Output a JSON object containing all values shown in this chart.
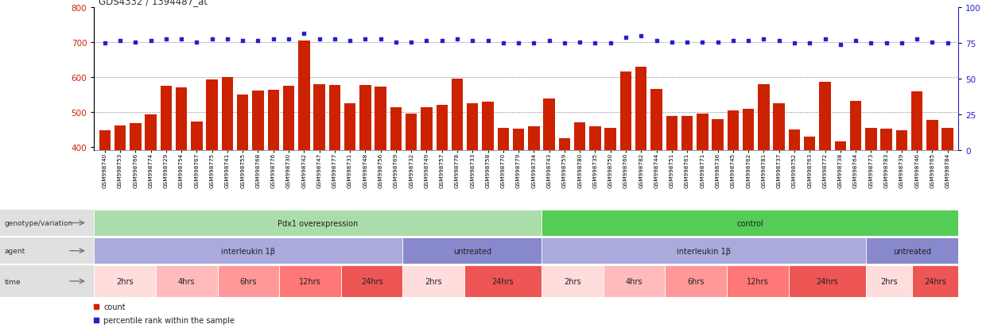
{
  "title": "GDS4332 / 1394487_at",
  "samples": [
    "GSM998740",
    "GSM998753",
    "GSM998766",
    "GSM998774",
    "GSM998729",
    "GSM998754",
    "GSM998767",
    "GSM998775",
    "GSM998741",
    "GSM998755",
    "GSM998768",
    "GSM998776",
    "GSM998730",
    "GSM998742",
    "GSM998747",
    "GSM998777",
    "GSM998731",
    "GSM998748",
    "GSM998756",
    "GSM998769",
    "GSM998732",
    "GSM998749",
    "GSM998757",
    "GSM998778",
    "GSM998733",
    "GSM998758",
    "GSM998770",
    "GSM998779",
    "GSM998734",
    "GSM998743",
    "GSM998759",
    "GSM998780",
    "GSM998735",
    "GSM998750",
    "GSM998760",
    "GSM998782",
    "GSM998744",
    "GSM998751",
    "GSM998761",
    "GSM998771",
    "GSM998736",
    "GSM998745",
    "GSM998762",
    "GSM998781",
    "GSM998737",
    "GSM998752",
    "GSM998763",
    "GSM998772",
    "GSM998738",
    "GSM998764",
    "GSM998773",
    "GSM998783",
    "GSM998739",
    "GSM998746",
    "GSM998765",
    "GSM998784"
  ],
  "counts": [
    447,
    462,
    469,
    493,
    575,
    570,
    474,
    594,
    600,
    550,
    562,
    565,
    575,
    705,
    580,
    578,
    525,
    578,
    572,
    513,
    495,
    515,
    520,
    596,
    525,
    530,
    455,
    453,
    460,
    540,
    425,
    470,
    460,
    455,
    617,
    630,
    567,
    490,
    490,
    495,
    480,
    505,
    510,
    580,
    525,
    450,
    430,
    587,
    415,
    532,
    455,
    452,
    448,
    560,
    478,
    455
  ],
  "percentiles": [
    75,
    77,
    76,
    77,
    78,
    78,
    76,
    78,
    78,
    77,
    77,
    78,
    78,
    82,
    78,
    78,
    77,
    78,
    78,
    76,
    76,
    77,
    77,
    78,
    77,
    77,
    75,
    75,
    75,
    77,
    75,
    76,
    75,
    75,
    79,
    80,
    77,
    76,
    76,
    76,
    76,
    77,
    77,
    78,
    77,
    75,
    75,
    78,
    74,
    77,
    75,
    75,
    75,
    78,
    76,
    75
  ],
  "bar_color": "#cc2200",
  "dot_color": "#2222cc",
  "ylim_left": [
    390,
    800
  ],
  "ylim_right": [
    0,
    100
  ],
  "yticks_left": [
    400,
    500,
    600,
    700,
    800
  ],
  "yticks_right": [
    0,
    25,
    50,
    75,
    100
  ],
  "background_color": "#ffffff",
  "genotype_groups": [
    {
      "label": "Pdx1 overexpression",
      "start": 0,
      "end": 28,
      "color": "#aaddaa"
    },
    {
      "label": "control",
      "start": 29,
      "end": 55,
      "color": "#55cc55"
    }
  ],
  "agent_groups": [
    {
      "label": "interleukin 1β",
      "start": 0,
      "end": 19,
      "color": "#aaaadd"
    },
    {
      "label": "untreated",
      "start": 20,
      "end": 28,
      "color": "#8888cc"
    },
    {
      "label": "interleukin 1β",
      "start": 29,
      "end": 49,
      "color": "#aaaadd"
    },
    {
      "label": "untreated",
      "start": 50,
      "end": 55,
      "color": "#8888cc"
    }
  ],
  "time_groups": [
    {
      "label": "2hrs",
      "start": 0,
      "end": 3,
      "color": "#ffdddd"
    },
    {
      "label": "4hrs",
      "start": 4,
      "end": 7,
      "color": "#ffbbbb"
    },
    {
      "label": "6hrs",
      "start": 8,
      "end": 11,
      "color": "#ff9999"
    },
    {
      "label": "12hrs",
      "start": 12,
      "end": 15,
      "color": "#ff7777"
    },
    {
      "label": "24hrs",
      "start": 16,
      "end": 19,
      "color": "#ee5555"
    },
    {
      "label": "2hrs",
      "start": 20,
      "end": 23,
      "color": "#ffdddd"
    },
    {
      "label": "24hrs",
      "start": 24,
      "end": 28,
      "color": "#ee5555"
    },
    {
      "label": "2hrs",
      "start": 29,
      "end": 32,
      "color": "#ffdddd"
    },
    {
      "label": "4hrs",
      "start": 33,
      "end": 36,
      "color": "#ffbbbb"
    },
    {
      "label": "6hrs",
      "start": 37,
      "end": 40,
      "color": "#ff9999"
    },
    {
      "label": "12hrs",
      "start": 41,
      "end": 44,
      "color": "#ff7777"
    },
    {
      "label": "24hrs",
      "start": 45,
      "end": 49,
      "color": "#ee5555"
    },
    {
      "label": "2hrs",
      "start": 50,
      "end": 52,
      "color": "#ffdddd"
    },
    {
      "label": "24hrs",
      "start": 53,
      "end": 55,
      "color": "#ee5555"
    }
  ],
  "row_label_bg": "#e0e0e0",
  "row_label_fg": "#333333",
  "legend_count_color": "#cc2200",
  "legend_pct_color": "#2222cc",
  "fig_width": 12.45,
  "fig_height": 4.14,
  "dpi": 100
}
